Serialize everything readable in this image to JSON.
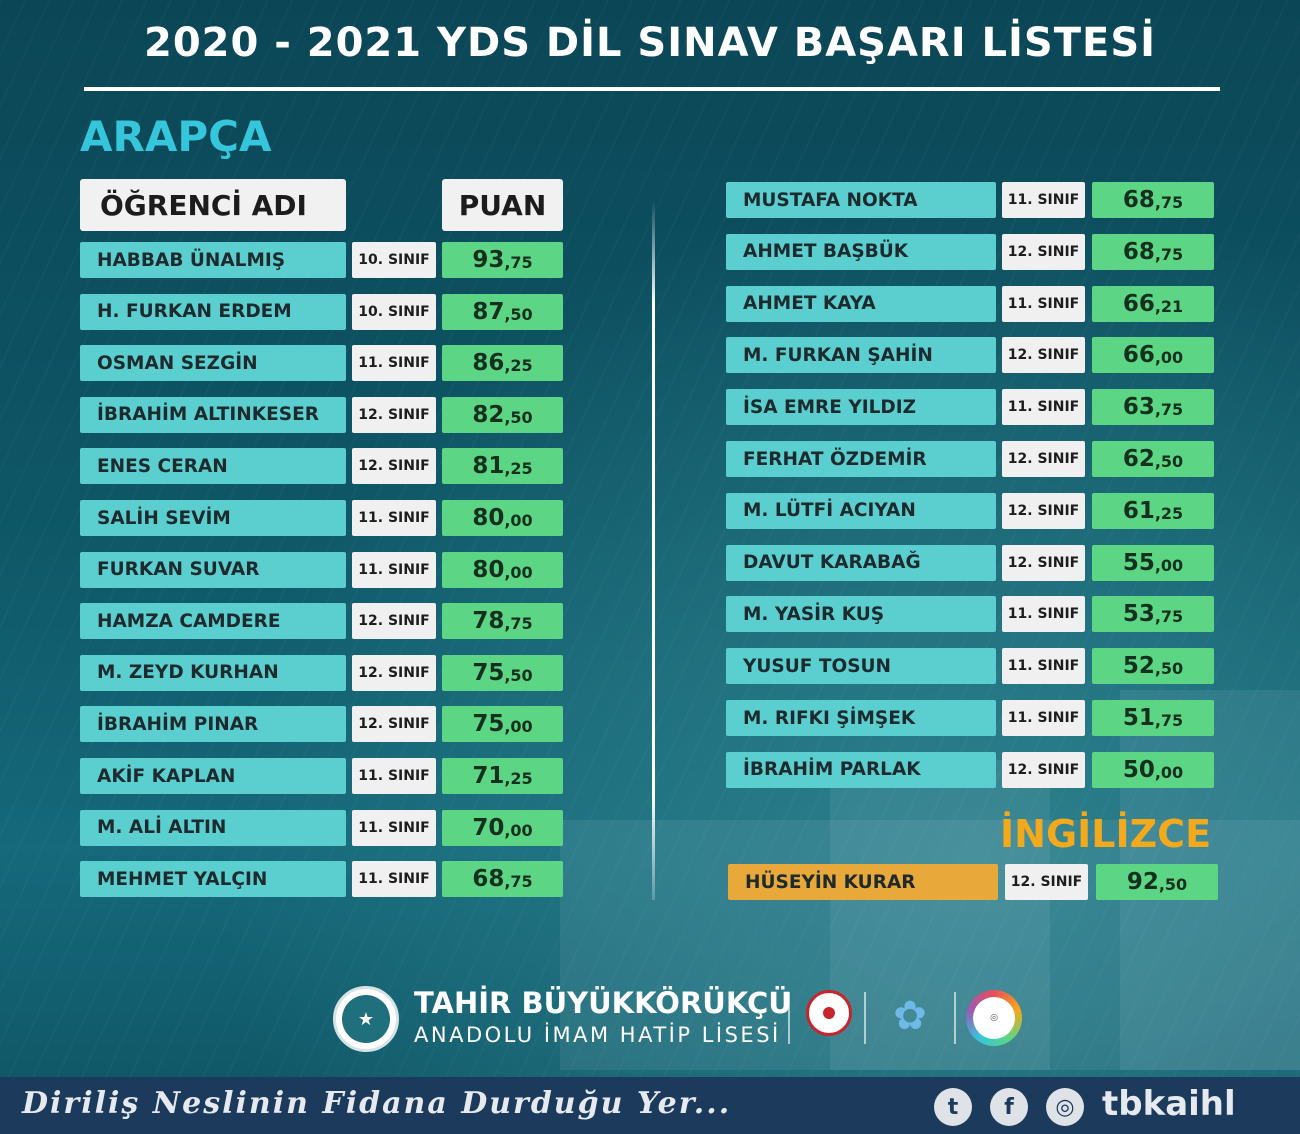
{
  "title": "2020 - 2021 YDS DİL SINAV BAŞARI LİSTESİ",
  "sections": {
    "arabic": "ARAPÇA",
    "english": "İNGİLİZCE"
  },
  "headers": {
    "name": "ÖĞRENCİ ADI",
    "score": "PUAN"
  },
  "colors": {
    "name_cell": "#5bcfcf",
    "score_cell": "#5cd684",
    "class_cell": "#f0f0f0",
    "highlight_name_cell": "#e8a83a",
    "arabic_heading": "#35c6dc",
    "english_heading": "#f2a91c"
  },
  "arabic_left": [
    {
      "name": "HABBAB ÜNALMIŞ",
      "class": "10. SINIF",
      "score_int": "93",
      "score_dec": ",75"
    },
    {
      "name": "H. FURKAN ERDEM",
      "class": "10. SINIF",
      "score_int": "87",
      "score_dec": ",50"
    },
    {
      "name": "OSMAN SEZGİN",
      "class": "11. SINIF",
      "score_int": "86",
      "score_dec": ",25"
    },
    {
      "name": "İBRAHİM ALTINKESER",
      "class": "12. SINIF",
      "score_int": "82",
      "score_dec": ",50"
    },
    {
      "name": "ENES CERAN",
      "class": "12. SINIF",
      "score_int": "81",
      "score_dec": ",25"
    },
    {
      "name": "SALİH SEVİM",
      "class": "11. SINIF",
      "score_int": "80",
      "score_dec": ",00"
    },
    {
      "name": "FURKAN SUVAR",
      "class": "11. SINIF",
      "score_int": "80",
      "score_dec": ",00"
    },
    {
      "name": "HAMZA CAMDERE",
      "class": "12. SINIF",
      "score_int": "78",
      "score_dec": ",75"
    },
    {
      "name": "M. ZEYD KURHAN",
      "class": "12. SINIF",
      "score_int": "75",
      "score_dec": ",50"
    },
    {
      "name": "İBRAHİM PINAR",
      "class": "12. SINIF",
      "score_int": "75",
      "score_dec": ",00"
    },
    {
      "name": "AKİF KAPLAN",
      "class": "11. SINIF",
      "score_int": "71",
      "score_dec": ",25"
    },
    {
      "name": "M. ALİ ALTIN",
      "class": "11. SINIF",
      "score_int": "70",
      "score_dec": ",00"
    },
    {
      "name": "MEHMET YALÇIN",
      "class": "11. SINIF",
      "score_int": "68",
      "score_dec": ",75"
    }
  ],
  "arabic_right": [
    {
      "name": "MUSTAFA NOKTA",
      "class": "11. SINIF",
      "score_int": "68",
      "score_dec": ",75"
    },
    {
      "name": "AHMET BAŞBÜK",
      "class": "12. SINIF",
      "score_int": "68",
      "score_dec": ",75"
    },
    {
      "name": "AHMET KAYA",
      "class": "11. SINIF",
      "score_int": "66",
      "score_dec": ",21"
    },
    {
      "name": "M. FURKAN ŞAHİN",
      "class": "12. SINIF",
      "score_int": "66",
      "score_dec": ",00"
    },
    {
      "name": "İSA EMRE YILDIZ",
      "class": "11. SINIF",
      "score_int": "63",
      "score_dec": ",75"
    },
    {
      "name": "FERHAT ÖZDEMİR",
      "class": "12. SINIF",
      "score_int": "62",
      "score_dec": ",50"
    },
    {
      "name": "M. LÜTFİ ACIYAN",
      "class": "12. SINIF",
      "score_int": "61",
      "score_dec": ",25"
    },
    {
      "name": "DAVUT KARABAĞ",
      "class": "12. SINIF",
      "score_int": "55",
      "score_dec": ",00"
    },
    {
      "name": "M. YASİR KUŞ",
      "class": "11. SINIF",
      "score_int": "53",
      "score_dec": ",75"
    },
    {
      "name": "YUSUF TOSUN",
      "class": "11. SINIF",
      "score_int": "52",
      "score_dec": ",50"
    },
    {
      "name": "M. RIFKI ŞİMŞEK",
      "class": "11. SINIF",
      "score_int": "51",
      "score_dec": ",75"
    },
    {
      "name": "İBRAHİM PARLAK",
      "class": "12. SINIF",
      "score_int": "50",
      "score_dec": ",00"
    }
  ],
  "english": [
    {
      "name": "HÜSEYİN KURAR",
      "class": "12. SINIF",
      "score_int": "92",
      "score_dec": ",50"
    }
  ],
  "school": {
    "name": "TAHİR BÜYÜKKÖRÜKÇÜ",
    "subtitle": "ANADOLU İMAM HATİP LİSESİ",
    "emblem_icon": "school-emblem-icon",
    "partner_logos": [
      "meb-logo-icon",
      "konya-mem-logo-icon",
      "hedef-logo-icon"
    ]
  },
  "footer": {
    "slogan": "Diriliş Neslinin Fidana Durduğu Yer...",
    "social_icons": [
      "twitter-icon",
      "facebook-icon",
      "instagram-icon"
    ],
    "handle": "tbkaihl"
  }
}
